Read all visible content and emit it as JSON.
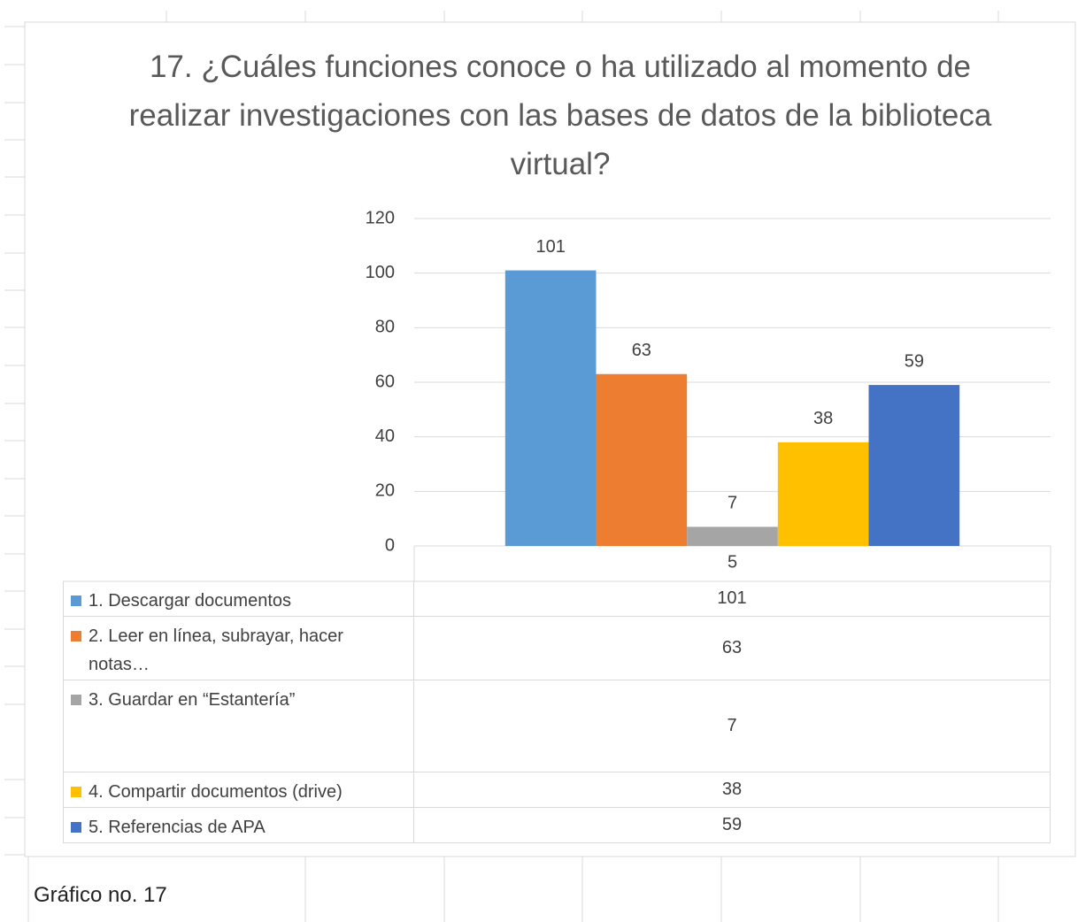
{
  "chart_data": {
    "type": "bar",
    "title": "17. ¿Cuáles funciones conoce o ha utilizado al momento de realizar investigaciones con las bases de datos de la biblioteca virtual?",
    "categories": [
      "5"
    ],
    "series": [
      {
        "name": "1.  Descargar documentos",
        "color": "#5b9bd5",
        "values": [
          101
        ]
      },
      {
        "name": "2.  Leer en línea, subrayar, hacer notas…",
        "color": "#ed7d31",
        "values": [
          63
        ]
      },
      {
        "name": "3.  Guardar en “Estantería”",
        "color": "#a5a5a5",
        "values": [
          7
        ]
      },
      {
        "name": "4.  Compartir documentos (drive)",
        "color": "#ffc000",
        "values": [
          38
        ]
      },
      {
        "name": "5.  Referencias de APA",
        "color": "#4472c4",
        "values": [
          59
        ]
      }
    ],
    "ylim": [
      0,
      120
    ],
    "yticks": [
      0,
      20,
      40,
      60,
      80,
      100,
      120
    ],
    "grid": true,
    "data_table": true
  },
  "caption": "Gráfico no. 17"
}
